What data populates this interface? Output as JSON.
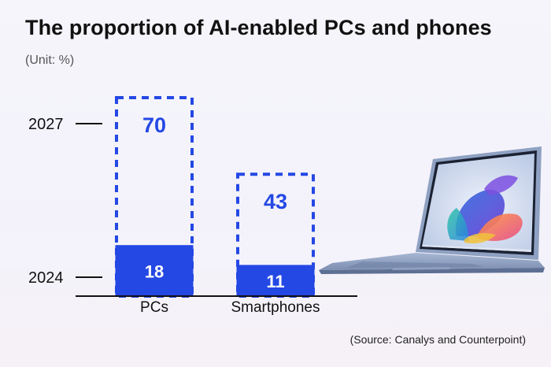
{
  "title": "The proportion of AI-enabled PCs and phones",
  "subtitle": "(Unit: %)",
  "source": "(Source: Canalys and Counterpoint)",
  "colors": {
    "accent": "#2448e4",
    "text": "#111111",
    "axis": "#111111"
  },
  "icons": {
    "device": "laptop-icon"
  },
  "chart_data": {
    "type": "bar",
    "categories": [
      "PCs",
      "Smartphones"
    ],
    "series": [
      {
        "name": "2024",
        "values": [
          18,
          11
        ]
      },
      {
        "name": "2027",
        "values": [
          70,
          43
        ]
      }
    ],
    "ylim": [
      0,
      70
    ],
    "year_labels": [
      "2027",
      "2024"
    ],
    "grid": false,
    "legend": "none"
  }
}
